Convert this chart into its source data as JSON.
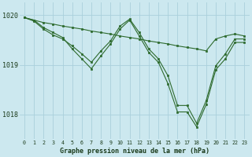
{
  "title": "Graphe pression niveau de la mer (hPa)",
  "background_color": "#cce8ef",
  "grid_color": "#aad0db",
  "line_color": "#2d6a2d",
  "ylim": [
    1017.5,
    1020.25
  ],
  "yticks": [
    1018,
    1019,
    1020
  ],
  "xlim": [
    -0.5,
    23.5
  ],
  "s1": [
    1019.95,
    1019.9,
    1019.85,
    1019.82,
    1019.78,
    1019.75,
    1019.72,
    1019.68,
    1019.65,
    1019.62,
    1019.58,
    1019.55,
    1019.52,
    1019.48,
    1019.45,
    1019.42,
    1019.38,
    1019.35,
    1019.32,
    1019.28,
    1019.52,
    1019.58,
    1019.62,
    1019.58
  ],
  "s2": [
    1019.95,
    1019.88,
    1019.72,
    1019.6,
    1019.52,
    1019.38,
    1019.22,
    1019.08,
    1019.28,
    1019.48,
    1019.78,
    1019.9,
    1019.65,
    1019.32,
    1019.12,
    1018.78,
    1018.18,
    1018.18,
    1017.82,
    1018.28,
    1018.98,
    1019.22,
    1019.52,
    1019.52
  ],
  "s3": [
    1019.95,
    1019.9,
    1019.75,
    1019.65,
    1019.55,
    1019.32,
    1019.12,
    1018.95,
    1019.2,
    1019.42,
    1019.72,
    1019.88,
    1019.58,
    1019.28,
    1019.08,
    1018.65,
    1018.08,
    1018.08,
    1017.78,
    1018.22,
    1018.92,
    1019.15,
    1019.48,
    1019.48
  ]
}
